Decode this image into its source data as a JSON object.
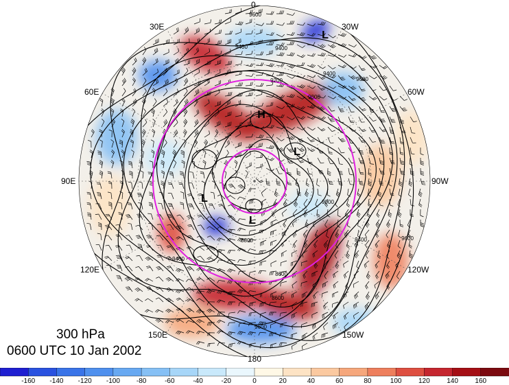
{
  "map": {
    "title_level": "300 hPa",
    "title_time": "0600 UTC 10 Jan 2002",
    "longitude_labels": {
      "top": "0",
      "top_right": "30W",
      "right_upper": "60W",
      "right": "90W",
      "right_lower": "120W",
      "bottom_right": "150W",
      "bottom": "180",
      "bottom_left": "150E",
      "left_lower": "120E",
      "left": "90E",
      "left_upper": "60E",
      "top_left": "30E"
    },
    "pressure_systems": [
      {
        "id": "H1",
        "label": "H"
      },
      {
        "id": "L1",
        "label": "L"
      },
      {
        "id": "L2",
        "label": "L"
      },
      {
        "id": "L3",
        "label": "L"
      },
      {
        "id": "L4",
        "label": "L"
      }
    ],
    "contour_labels": [
      "9600",
      "9400",
      "9400",
      "9200",
      "9000",
      "9400",
      "9600",
      "9000",
      "8800",
      "8600",
      "8600",
      "9400",
      "9600",
      "9600",
      "9400"
    ],
    "colors": {
      "negative_strong": "#1f2cd6",
      "positive_strong": "#a50f15",
      "circle_magenta": "#e020e0",
      "contour": "#000000"
    }
  },
  "colorbar": {
    "labels": [
      "-160",
      "-140",
      "-120",
      "-100",
      "-80",
      "-60",
      "-40",
      "-20",
      "0",
      "20",
      "40",
      "60",
      "80",
      "100",
      "120",
      "140",
      "160"
    ],
    "colors": [
      "#1f1fd1",
      "#2a52e0",
      "#3a74e8",
      "#4f90ee",
      "#68a9f2",
      "#86c0f5",
      "#a7d6f8",
      "#c9e9fb",
      "#eaf7fd",
      "#fff8e6",
      "#fde3c4",
      "#fbc9a0",
      "#f6a77c",
      "#ee7f5d",
      "#de4f41",
      "#c5262f",
      "#a50f15",
      "#7c0a10"
    ]
  }
}
